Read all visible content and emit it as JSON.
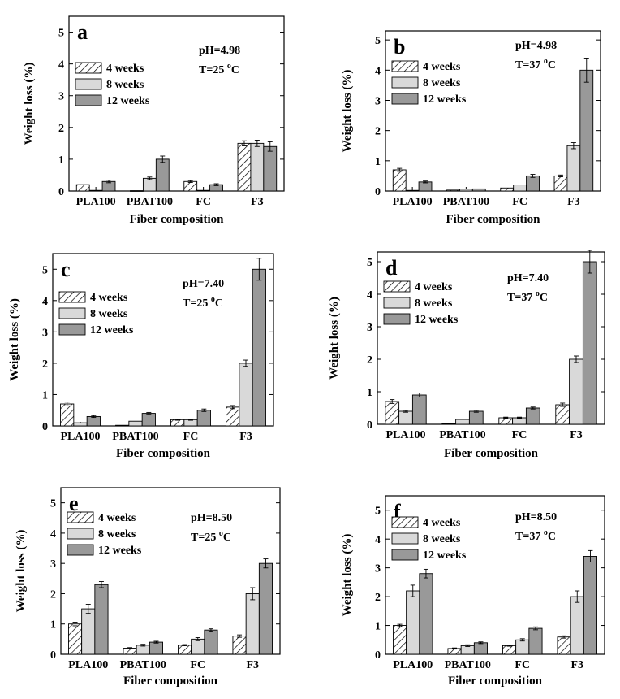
{
  "chart_data": [
    {
      "type": "bar",
      "panel": "a",
      "categories": [
        "PLA100",
        "PBAT100",
        "FC",
        "F3"
      ],
      "xlabel": "Fiber composition",
      "ylabel": "Weight loss (%)",
      "ylim": [
        0,
        5.5
      ],
      "yticks": [
        0,
        1,
        2,
        3,
        4,
        5
      ],
      "condition": {
        "ph": "pH=4.98",
        "temp_prefix": "T=25 ",
        "temp_sup": "o",
        "temp_unit": "C"
      },
      "series": [
        {
          "name": "4 weeks",
          "values": [
            0.2,
            0.01,
            0.3,
            1.5
          ],
          "errors": [
            0,
            0,
            0.03,
            0.08
          ]
        },
        {
          "name": "8 weeks",
          "values": [
            0.02,
            0.4,
            0.02,
            1.5
          ],
          "errors": [
            0,
            0.04,
            0,
            0.1
          ]
        },
        {
          "name": "12 weeks",
          "values": [
            0.3,
            1.0,
            0.2,
            1.4
          ],
          "errors": [
            0.04,
            0.1,
            0.03,
            0.15
          ]
        }
      ]
    },
    {
      "type": "bar",
      "panel": "b",
      "categories": [
        "PLA100",
        "PBAT100",
        "FC",
        "F3"
      ],
      "xlabel": "Fiber composition",
      "ylabel": "Weight loss (%)",
      "ylim": [
        0,
        5.3
      ],
      "yticks": [
        0,
        1,
        2,
        3,
        4,
        5
      ],
      "condition": {
        "ph": "pH=4.98",
        "temp_prefix": "T=37 ",
        "temp_sup": "o",
        "temp_unit": "C"
      },
      "series": [
        {
          "name": "4 weeks",
          "values": [
            0.7,
            0.03,
            0.1,
            0.5
          ],
          "errors": [
            0.05,
            0,
            0,
            0.03
          ]
        },
        {
          "name": "8 weeks",
          "values": [
            0.02,
            0.06,
            0.2,
            1.5
          ],
          "errors": [
            0,
            0,
            0,
            0.1
          ]
        },
        {
          "name": "12 weeks",
          "values": [
            0.3,
            0.07,
            0.5,
            4.0
          ],
          "errors": [
            0.03,
            0,
            0.05,
            0.4
          ]
        }
      ]
    },
    {
      "type": "bar",
      "panel": "c",
      "categories": [
        "PLA100",
        "PBAT100",
        "FC",
        "F3"
      ],
      "xlabel": "Fiber composition",
      "ylabel": "Weight loss (%)",
      "ylim": [
        0,
        5.5
      ],
      "yticks": [
        0,
        1,
        2,
        3,
        4,
        5
      ],
      "condition": {
        "ph": "pH=7.40",
        "temp_prefix": "T=25 ",
        "temp_sup": "o",
        "temp_unit": "C"
      },
      "series": [
        {
          "name": "4 weeks",
          "values": [
            0.7,
            0.02,
            0.2,
            0.6
          ],
          "errors": [
            0.06,
            0,
            0.02,
            0.05
          ]
        },
        {
          "name": "8 weeks",
          "values": [
            0.1,
            0.15,
            0.2,
            2.0
          ],
          "errors": [
            0,
            0,
            0.02,
            0.1
          ]
        },
        {
          "name": "12 weeks",
          "values": [
            0.3,
            0.4,
            0.5,
            5.0
          ],
          "errors": [
            0.03,
            0.03,
            0.04,
            0.35
          ]
        }
      ]
    },
    {
      "type": "bar",
      "panel": "d",
      "categories": [
        "PLA100",
        "PBAT100",
        "FC",
        "F3"
      ],
      "xlabel": "Fiber composition",
      "ylabel": "Weight loss (%)",
      "ylim": [
        0,
        5.3
      ],
      "yticks": [
        0,
        1,
        2,
        3,
        4,
        5
      ],
      "condition": {
        "ph": "pH=7.40",
        "temp_prefix": "T=37 ",
        "temp_sup": "o",
        "temp_unit": "C"
      },
      "series": [
        {
          "name": "4 weeks",
          "values": [
            0.7,
            0.02,
            0.2,
            0.6
          ],
          "errors": [
            0.06,
            0,
            0.02,
            0.05
          ]
        },
        {
          "name": "8 weeks",
          "values": [
            0.4,
            0.15,
            0.2,
            2.0
          ],
          "errors": [
            0.03,
            0,
            0.02,
            0.1
          ]
        },
        {
          "name": "12 weeks",
          "values": [
            0.9,
            0.4,
            0.5,
            5.0
          ],
          "errors": [
            0.06,
            0.03,
            0.03,
            0.35
          ]
        }
      ]
    },
    {
      "type": "bar",
      "panel": "e",
      "categories": [
        "PLA100",
        "PBAT100",
        "FC",
        "F3"
      ],
      "xlabel": "Fiber composition",
      "ylabel": "Weight loss (%)",
      "ylim": [
        0,
        5.5
      ],
      "yticks": [
        0,
        1,
        2,
        3,
        4,
        5
      ],
      "condition": {
        "ph": "pH=8.50",
        "temp_prefix": "T=25 ",
        "temp_sup": "o",
        "temp_unit": "C"
      },
      "series": [
        {
          "name": "4 weeks",
          "values": [
            1.0,
            0.2,
            0.3,
            0.6
          ],
          "errors": [
            0.06,
            0.02,
            0.02,
            0.04
          ]
        },
        {
          "name": "8 weeks",
          "values": [
            1.5,
            0.3,
            0.5,
            2.0
          ],
          "errors": [
            0.15,
            0.03,
            0.05,
            0.2
          ]
        },
        {
          "name": "12 weeks",
          "values": [
            2.3,
            0.4,
            0.8,
            3.0
          ],
          "errors": [
            0.1,
            0.03,
            0.04,
            0.15
          ]
        }
      ]
    },
    {
      "type": "bar",
      "panel": "f",
      "categories": [
        "PLA100",
        "PBAT100",
        "FC",
        "F3"
      ],
      "xlabel": "Fiber composition",
      "ylabel": "Weight loss (%)",
      "ylim": [
        0,
        5.5
      ],
      "yticks": [
        0,
        1,
        2,
        3,
        4,
        5
      ],
      "condition": {
        "ph": "pH=8.50",
        "temp_prefix": "T=37 ",
        "temp_sup": "o",
        "temp_unit": "C"
      },
      "series": [
        {
          "name": "4 weeks",
          "values": [
            1.0,
            0.2,
            0.3,
            0.6
          ],
          "errors": [
            0.04,
            0.02,
            0.02,
            0.04
          ]
        },
        {
          "name": "8 weeks",
          "values": [
            2.2,
            0.3,
            0.5,
            2.0
          ],
          "errors": [
            0.2,
            0.03,
            0.04,
            0.2
          ]
        },
        {
          "name": "12 weeks",
          "values": [
            2.8,
            0.4,
            0.9,
            3.4
          ],
          "errors": [
            0.15,
            0.03,
            0.05,
            0.2
          ]
        }
      ]
    }
  ],
  "style": {
    "series_fills": [
      "hatch",
      "#d9d9d9",
      "#999999"
    ],
    "bar_stroke": "#000000"
  }
}
